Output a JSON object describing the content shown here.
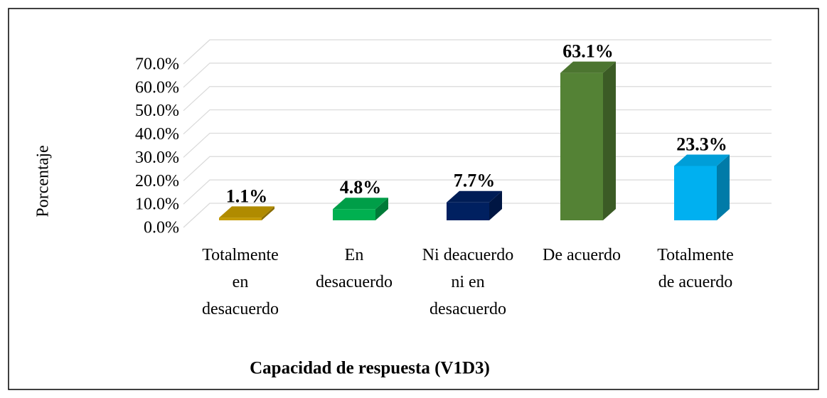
{
  "chart_data": {
    "type": "bar3d",
    "title": "Capacidad de respuesta (V1D3)",
    "y_label": "Porcentaje",
    "categories": [
      "Totalmente en desacuerdo",
      "En desacuerdo",
      "Ni deacuerdo ni en desacuerdo",
      "De acuerdo",
      "Totalmente de acuerdo"
    ],
    "values": [
      1.1,
      4.8,
      7.7,
      63.1,
      23.3
    ],
    "value_labels": [
      "1.1%",
      "4.8%",
      "7.7%",
      "63.1%",
      "23.3%"
    ],
    "colors": [
      "#c49a00",
      "#00b050",
      "#002060",
      "#548235",
      "#00b0f0"
    ],
    "ylim": [
      0,
      70
    ],
    "yticks": [
      {
        "value": 0,
        "label": "0.0%"
      },
      {
        "value": 10,
        "label": "10.0%"
      },
      {
        "value": 20,
        "label": "20.0%"
      },
      {
        "value": 30,
        "label": "30.0%"
      },
      {
        "value": 40,
        "label": "40.0%"
      },
      {
        "value": 50,
        "label": "50.0%"
      },
      {
        "value": 60,
        "label": "60.0%"
      },
      {
        "value": 70,
        "label": "70.0%"
      }
    ],
    "grid": true
  }
}
